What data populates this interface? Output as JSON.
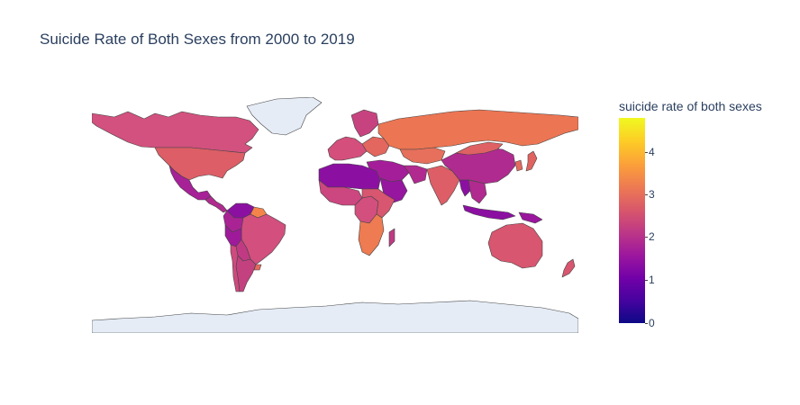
{
  "title": "Suicide Rate of Both Sexes from 2000 to 2019",
  "colorbar": {
    "title": "suicide rate of both sexes",
    "ticks": [
      "0",
      "1",
      "2",
      "3",
      "4"
    ],
    "min": 0,
    "max": 4.7,
    "colorscale": [
      "#0d0887",
      "#46039f",
      "#7201a8",
      "#9c179e",
      "#bd3786",
      "#d8576b",
      "#ed7953",
      "#fb9f3a",
      "#fdca26",
      "#f0f921"
    ]
  },
  "colors": {
    "background": "#ffffff",
    "land_nodata": "#e5ecf6",
    "border": "#444444"
  },
  "chart_data": {
    "type": "choropleth",
    "title": "Suicide Rate of Both Sexes from 2000 to 2019",
    "colorbar_title": "suicide rate of both sexes",
    "range": [
      0,
      4.7
    ],
    "regions": [
      {
        "name": "Canada",
        "value": 2.6
      },
      {
        "name": "United States",
        "value": 2.8
      },
      {
        "name": "Mexico",
        "value": 1.7
      },
      {
        "name": "Central America",
        "value": 1.9
      },
      {
        "name": "Colombia",
        "value": 1.9
      },
      {
        "name": "Venezuela",
        "value": 1.5
      },
      {
        "name": "Guyana",
        "value": 3.4
      },
      {
        "name": "Peru",
        "value": 1.8
      },
      {
        "name": "Brazil",
        "value": 2.5
      },
      {
        "name": "Bolivia",
        "value": 2.3
      },
      {
        "name": "Argentina",
        "value": 2.3
      },
      {
        "name": "Chile",
        "value": 2.6
      },
      {
        "name": "Paraguay",
        "value": 2.4
      },
      {
        "name": "Uruguay",
        "value": 3.0
      },
      {
        "name": "Russia",
        "value": 3.1
      },
      {
        "name": "Europe (west)",
        "value": 2.6
      },
      {
        "name": "Europe (east)",
        "value": 2.9
      },
      {
        "name": "Kazakhstan",
        "value": 3.0
      },
      {
        "name": "China",
        "value": 2.2
      },
      {
        "name": "Mongolia",
        "value": 2.8
      },
      {
        "name": "India",
        "value": 2.6
      },
      {
        "name": "Iran",
        "value": 2.0
      },
      {
        "name": "Arabian Peninsula",
        "value": 1.7
      },
      {
        "name": "Myanmar",
        "value": 1.5
      },
      {
        "name": "Southeast Asia",
        "value": 2.0
      },
      {
        "name": "Indonesia",
        "value": 1.5
      },
      {
        "name": "Papua New Guinea",
        "value": 1.6
      },
      {
        "name": "Japan",
        "value": 2.9
      },
      {
        "name": "Korea",
        "value": 3.0
      },
      {
        "name": "North Africa",
        "value": 1.5
      },
      {
        "name": "West Africa",
        "value": 2.5
      },
      {
        "name": "Central Africa",
        "value": 2.6
      },
      {
        "name": "East Africa",
        "value": 2.6
      },
      {
        "name": "Southern Africa",
        "value": 3.1
      },
      {
        "name": "Madagascar",
        "value": 2.3
      },
      {
        "name": "Australia",
        "value": 2.7
      },
      {
        "name": "New Zealand",
        "value": 2.7
      }
    ]
  }
}
